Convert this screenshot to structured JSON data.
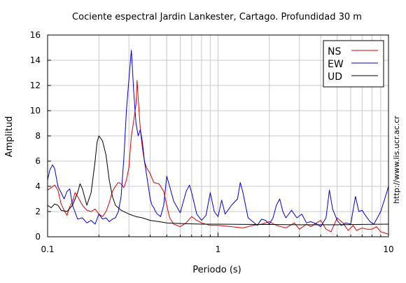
{
  "chart_data": {
    "type": "line",
    "title": "Cociente espectral Jardin Lankester, Cartago. Profundidad 30 m",
    "xlabel": "Periodo (s)",
    "ylabel": "Amplitud",
    "xscale": "log",
    "xlim": [
      0.1,
      10
    ],
    "ylim": [
      0,
      16
    ],
    "grid": true,
    "legend_position": "top-right",
    "x_tick_labels": [
      {
        "value": 0.1,
        "label": "0.1"
      },
      {
        "value": 1,
        "label": "1"
      },
      {
        "value": 10,
        "label": "10"
      }
    ],
    "y_ticks": [
      0,
      2,
      4,
      6,
      8,
      10,
      12,
      14,
      16
    ],
    "annotation": "http://www.lis.ucr.ac.cr",
    "series": [
      {
        "name": "NS",
        "color": "#dd0000",
        "points": [
          [
            0.1,
            3.7
          ],
          [
            0.105,
            3.9
          ],
          [
            0.11,
            4.1
          ],
          [
            0.115,
            3.7
          ],
          [
            0.12,
            2.6
          ],
          [
            0.125,
            2.1
          ],
          [
            0.13,
            1.7
          ],
          [
            0.135,
            2.4
          ],
          [
            0.14,
            2.8
          ],
          [
            0.145,
            3.5
          ],
          [
            0.15,
            3.2
          ],
          [
            0.16,
            2.5
          ],
          [
            0.17,
            2.1
          ],
          [
            0.18,
            2.0
          ],
          [
            0.19,
            2.2
          ],
          [
            0.2,
            1.8
          ],
          [
            0.21,
            1.6
          ],
          [
            0.22,
            2.0
          ],
          [
            0.23,
            2.7
          ],
          [
            0.24,
            3.6
          ],
          [
            0.25,
            4.0
          ],
          [
            0.26,
            4.3
          ],
          [
            0.27,
            4.2
          ],
          [
            0.28,
            3.9
          ],
          [
            0.29,
            4.5
          ],
          [
            0.3,
            5.5
          ],
          [
            0.31,
            8.0
          ],
          [
            0.32,
            9.2
          ],
          [
            0.33,
            10.5
          ],
          [
            0.335,
            12.4
          ],
          [
            0.34,
            11.0
          ],
          [
            0.35,
            8.5
          ],
          [
            0.36,
            7.0
          ],
          [
            0.37,
            6.0
          ],
          [
            0.38,
            5.5
          ],
          [
            0.4,
            5.0
          ],
          [
            0.42,
            4.3
          ],
          [
            0.45,
            4.2
          ],
          [
            0.48,
            3.6
          ],
          [
            0.5,
            2.5
          ],
          [
            0.52,
            1.5
          ],
          [
            0.55,
            1.0
          ],
          [
            0.6,
            0.8
          ],
          [
            0.65,
            1.1
          ],
          [
            0.7,
            1.6
          ],
          [
            0.75,
            1.3
          ],
          [
            0.8,
            1.1
          ],
          [
            0.9,
            0.9
          ],
          [
            1.0,
            0.9
          ],
          [
            1.2,
            0.8
          ],
          [
            1.4,
            0.7
          ],
          [
            1.6,
            0.9
          ],
          [
            1.8,
            1.0
          ],
          [
            2.0,
            1.2
          ],
          [
            2.2,
            0.9
          ],
          [
            2.5,
            0.7
          ],
          [
            2.8,
            1.1
          ],
          [
            3.0,
            0.6
          ],
          [
            3.3,
            1.0
          ],
          [
            3.5,
            0.8
          ],
          [
            4.0,
            1.3
          ],
          [
            4.3,
            0.6
          ],
          [
            4.6,
            0.4
          ],
          [
            5.0,
            1.5
          ],
          [
            5.4,
            1.1
          ],
          [
            5.8,
            0.5
          ],
          [
            6.2,
            0.9
          ],
          [
            6.5,
            0.5
          ],
          [
            7.0,
            0.7
          ],
          [
            7.5,
            0.6
          ],
          [
            8.0,
            0.6
          ],
          [
            8.5,
            0.8
          ],
          [
            9.0,
            0.4
          ],
          [
            9.5,
            0.3
          ],
          [
            10,
            0.2
          ]
        ]
      },
      {
        "name": "EW",
        "color": "#0000cc",
        "points": [
          [
            0.1,
            4.5
          ],
          [
            0.103,
            5.3
          ],
          [
            0.107,
            5.7
          ],
          [
            0.11,
            5.4
          ],
          [
            0.115,
            4.0
          ],
          [
            0.12,
            3.5
          ],
          [
            0.125,
            3.0
          ],
          [
            0.13,
            3.6
          ],
          [
            0.135,
            3.8
          ],
          [
            0.14,
            2.5
          ],
          [
            0.15,
            1.4
          ],
          [
            0.16,
            1.5
          ],
          [
            0.17,
            1.1
          ],
          [
            0.18,
            1.3
          ],
          [
            0.19,
            1.0
          ],
          [
            0.2,
            1.8
          ],
          [
            0.21,
            1.4
          ],
          [
            0.22,
            1.5
          ],
          [
            0.23,
            1.2
          ],
          [
            0.24,
            1.4
          ],
          [
            0.25,
            1.5
          ],
          [
            0.26,
            2.0
          ],
          [
            0.27,
            3.2
          ],
          [
            0.28,
            6.2
          ],
          [
            0.29,
            10.0
          ],
          [
            0.3,
            12.5
          ],
          [
            0.31,
            14.8
          ],
          [
            0.315,
            13.2
          ],
          [
            0.32,
            11.5
          ],
          [
            0.33,
            9.0
          ],
          [
            0.34,
            8.0
          ],
          [
            0.35,
            8.5
          ],
          [
            0.36,
            7.5
          ],
          [
            0.37,
            6.0
          ],
          [
            0.38,
            5.0
          ],
          [
            0.39,
            4.0
          ],
          [
            0.4,
            3.0
          ],
          [
            0.41,
            2.5
          ],
          [
            0.42,
            2.3
          ],
          [
            0.43,
            2.0
          ],
          [
            0.44,
            1.8
          ],
          [
            0.46,
            1.6
          ],
          [
            0.48,
            2.5
          ],
          [
            0.5,
            4.8
          ],
          [
            0.52,
            4.0
          ],
          [
            0.55,
            2.8
          ],
          [
            0.6,
            1.9
          ],
          [
            0.65,
            3.6
          ],
          [
            0.68,
            4.1
          ],
          [
            0.7,
            3.5
          ],
          [
            0.75,
            1.8
          ],
          [
            0.8,
            1.3
          ],
          [
            0.85,
            1.7
          ],
          [
            0.9,
            3.5
          ],
          [
            0.95,
            2.0
          ],
          [
            1.0,
            1.6
          ],
          [
            1.05,
            2.9
          ],
          [
            1.1,
            1.8
          ],
          [
            1.2,
            2.5
          ],
          [
            1.3,
            3.0
          ],
          [
            1.35,
            4.3
          ],
          [
            1.4,
            3.5
          ],
          [
            1.5,
            1.5
          ],
          [
            1.6,
            1.2
          ],
          [
            1.7,
            0.9
          ],
          [
            1.8,
            1.4
          ],
          [
            1.9,
            1.3
          ],
          [
            2.0,
            1.0
          ],
          [
            2.1,
            1.5
          ],
          [
            2.2,
            2.5
          ],
          [
            2.3,
            3.0
          ],
          [
            2.4,
            2.0
          ],
          [
            2.5,
            1.5
          ],
          [
            2.7,
            2.1
          ],
          [
            2.9,
            1.5
          ],
          [
            3.1,
            1.8
          ],
          [
            3.3,
            1.1
          ],
          [
            3.5,
            1.2
          ],
          [
            3.8,
            1.0
          ],
          [
            4.0,
            0.8
          ],
          [
            4.3,
            1.5
          ],
          [
            4.5,
            3.7
          ],
          [
            4.7,
            2.2
          ],
          [
            5.0,
            1.3
          ],
          [
            5.3,
            0.9
          ],
          [
            5.6,
            1.1
          ],
          [
            6.0,
            1.0
          ],
          [
            6.4,
            3.2
          ],
          [
            6.7,
            2.0
          ],
          [
            7.0,
            2.1
          ],
          [
            7.4,
            1.6
          ],
          [
            7.8,
            1.2
          ],
          [
            8.2,
            1.0
          ],
          [
            8.6,
            1.5
          ],
          [
            9.0,
            2.0
          ],
          [
            9.5,
            3.0
          ],
          [
            10,
            4.0
          ]
        ]
      },
      {
        "name": "UD",
        "color": "#000000",
        "points": [
          [
            0.1,
            2.5
          ],
          [
            0.105,
            2.3
          ],
          [
            0.11,
            2.6
          ],
          [
            0.115,
            2.5
          ],
          [
            0.12,
            2.1
          ],
          [
            0.13,
            2.0
          ],
          [
            0.14,
            2.5
          ],
          [
            0.15,
            3.5
          ],
          [
            0.155,
            4.2
          ],
          [
            0.16,
            3.8
          ],
          [
            0.17,
            2.5
          ],
          [
            0.18,
            3.5
          ],
          [
            0.19,
            6.0
          ],
          [
            0.195,
            7.5
          ],
          [
            0.2,
            8.0
          ],
          [
            0.21,
            7.6
          ],
          [
            0.22,
            6.5
          ],
          [
            0.23,
            4.5
          ],
          [
            0.24,
            3.2
          ],
          [
            0.25,
            2.5
          ],
          [
            0.27,
            2.1
          ],
          [
            0.3,
            1.8
          ],
          [
            0.33,
            1.6
          ],
          [
            0.36,
            1.5
          ],
          [
            0.4,
            1.3
          ],
          [
            0.45,
            1.2
          ],
          [
            0.5,
            1.1
          ],
          [
            0.6,
            1.05
          ],
          [
            0.8,
            1.0
          ],
          [
            1.0,
            1.0
          ],
          [
            1.5,
            0.98
          ],
          [
            2.0,
            0.97
          ],
          [
            3.0,
            0.95
          ],
          [
            5.0,
            0.95
          ],
          [
            7.0,
            0.98
          ],
          [
            10,
            1.0
          ]
        ]
      }
    ]
  }
}
